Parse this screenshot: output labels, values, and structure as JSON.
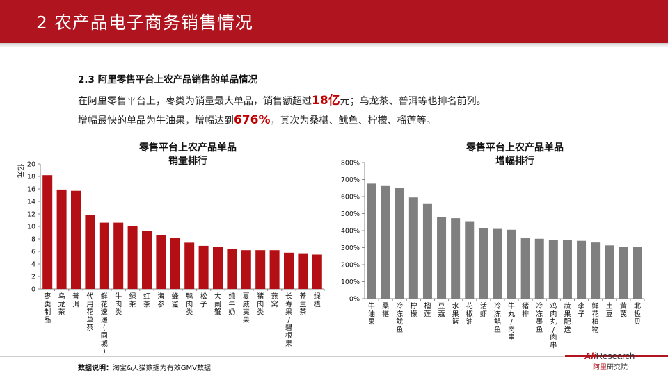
{
  "header": {
    "title": "2 农产品电子商务销售情况"
  },
  "section": {
    "title": "2.3 阿里零售平台上农产品销售的单品情况",
    "line1_pre": "在阿里零售平台上，枣类为销量最大单品，销售额超过",
    "line1_hl": "18亿",
    "line1_post": "元；乌龙茶、普洱等也排名前列。",
    "line2_pre": "增幅最快的单品为牛油果，增幅达到",
    "line2_hl": "676%",
    "line2_post": "，其次为桑椹、鱿鱼、柠檬、榴莲等。"
  },
  "chart_data": [
    {
      "type": "bar",
      "title": "零售平台上农产品单品\n销量排行",
      "ylabel": "亿元",
      "ylim": [
        0,
        20
      ],
      "yticks": [
        0,
        2,
        4,
        6,
        8,
        10,
        12,
        14,
        16,
        18,
        20
      ],
      "ytick_labels": [
        "0",
        "2",
        "4",
        "6",
        "8",
        "10",
        "12",
        "14",
        "16",
        "18",
        "20"
      ],
      "grid": false,
      "color": "#b50f16",
      "categories": [
        "枣类制品",
        "乌龙茶",
        "普洱",
        "代用花草茶",
        "鲜花速递(同城)",
        "牛肉类",
        "绿茶",
        "红茶",
        "海参",
        "蜂蜜",
        "鸭肉类",
        "松子",
        "大闸蟹",
        "纯牛奶",
        "夏威夷果",
        "猪肉类",
        "燕窝",
        "长寿果/碧根果",
        "养生茶",
        "绿植"
      ],
      "values": [
        18.2,
        15.9,
        15.7,
        11.8,
        10.6,
        10.6,
        10.0,
        9.3,
        8.6,
        8.2,
        7.4,
        6.9,
        6.7,
        6.4,
        6.2,
        6.2,
        6.2,
        5.8,
        5.6,
        5.5
      ]
    },
    {
      "type": "bar",
      "title": "零售平台上农产品单品\n增幅排行",
      "ylabel": "",
      "ylim": [
        0,
        800
      ],
      "yticks": [
        0,
        100,
        200,
        300,
        400,
        500,
        600,
        700,
        800
      ],
      "ytick_labels": [
        "0%",
        "100%",
        "200%",
        "300%",
        "400%",
        "500%",
        "600%",
        "700%",
        "800%"
      ],
      "grid": false,
      "color": "#7f7f7f",
      "categories": [
        "牛油果",
        "桑椹",
        "冷冻鱿鱼",
        "柠檬",
        "榴莲",
        "豆蔻",
        "水果篮",
        "花椒油",
        "活虾",
        "冷冻鲳鱼",
        "牛丸/肉串",
        "猪排",
        "冷冻墨鱼",
        "鸡肉丸/肉串",
        "蔬果配送",
        "李子",
        "鲜花植物",
        "土豆",
        "黄芪",
        "北极贝"
      ],
      "values": [
        676,
        662,
        650,
        595,
        556,
        480,
        473,
        455,
        414,
        410,
        405,
        355,
        352,
        345,
        345,
        340,
        330,
        313,
        305,
        302
      ]
    }
  ],
  "footer": {
    "note_label": "数据说明：",
    "note_text": "淘宝&天猫数据为有效GMV数据"
  },
  "logo": {
    "ali": "Ali",
    "research": "Research",
    "ar_red": "阿里",
    "ar_rest": "研究院"
  }
}
